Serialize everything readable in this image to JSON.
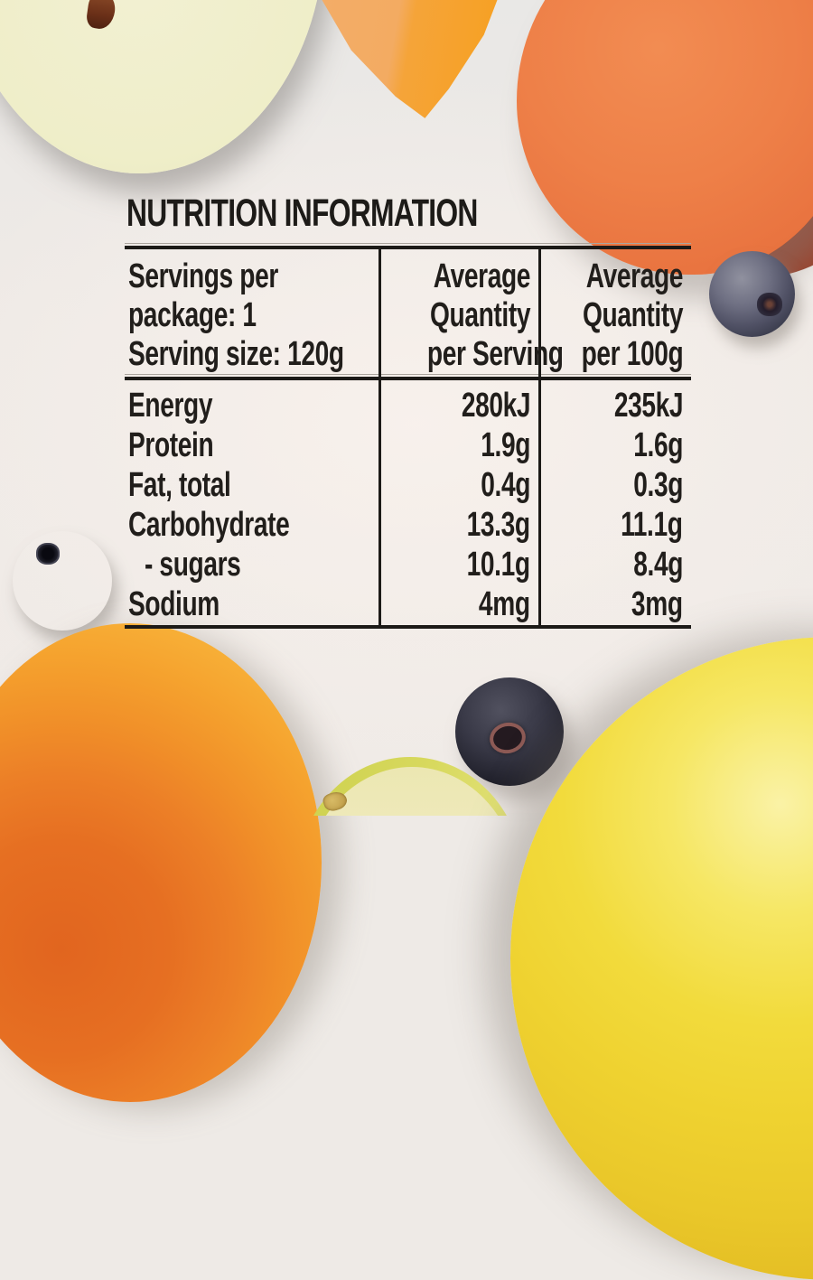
{
  "title": "NUTRITION INFORMATION",
  "table": {
    "header": {
      "col1": [
        "Servings per",
        "package: 1",
        "Serving size: 120g"
      ],
      "col2": [
        "Average",
        "Quantity",
        "per Serving"
      ],
      "col3": [
        "Average",
        "Quantity",
        "per 100g"
      ]
    },
    "rows": [
      {
        "label": "Energy",
        "per_serving": "280kJ",
        "per_100g": "235kJ"
      },
      {
        "label": "Protein",
        "per_serving": "1.9g",
        "per_100g": "1.6g"
      },
      {
        "label": "Fat, total",
        "per_serving": "0.4g",
        "per_100g": "0.3g"
      },
      {
        "label": "Carbohydrate",
        "per_serving": "13.3g",
        "per_100g": "11.1g"
      },
      {
        "label": "- sugars",
        "per_serving": "10.1g",
        "per_100g": "8.4g"
      },
      {
        "label": "Sodium",
        "per_serving": "4mg",
        "per_100g": "3mg"
      }
    ]
  },
  "decorations": [
    "green-apple-half",
    "pumpkin-chunk",
    "sweet-potato-slices",
    "blueberry-right",
    "blueberry-left",
    "blueberry-middle",
    "rockmelon-half",
    "apple-wedge",
    "yellow-apple"
  ],
  "colors": {
    "background": "#eeeae6",
    "text": "#1d1b18",
    "rule": "#1c1a17",
    "apple_flesh": "#efeec9",
    "apple_skin": "#c9cf58",
    "pumpkin_orange": "#f7a01f",
    "sweet_potato_flesh": "#ee8048",
    "sweet_potato_skin": "#9a432d",
    "blueberry_dark": "#24252f",
    "melon_orange": "#ec7f27",
    "yellow_apple": "#efd230"
  }
}
